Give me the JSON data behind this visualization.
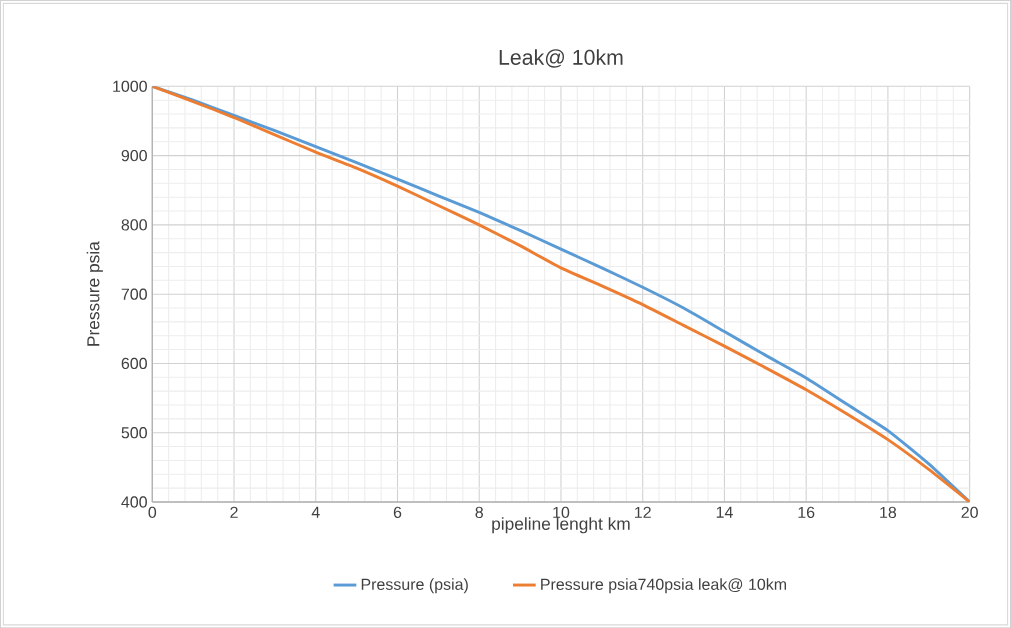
{
  "chart_data": {
    "type": "line",
    "title": "Leak@ 10km",
    "xlabel": "pipeline lenght km",
    "ylabel": "Pressure  psia",
    "x": [
      0,
      1,
      2,
      3,
      4,
      5,
      6,
      7,
      8,
      9,
      10,
      11,
      12,
      13,
      14,
      15,
      16,
      17,
      18,
      19,
      20
    ],
    "series": [
      {
        "name": "Pressure (psia)",
        "color": "#5b9bd5",
        "values": [
          1000,
          980,
          958,
          936,
          913,
          890,
          866,
          842,
          818,
          792,
          765,
          738,
          710,
          680,
          646,
          612,
          579,
          541,
          503,
          455,
          400
        ]
      },
      {
        "name": "Pressure psia740psia leak@ 10km",
        "color": "#ed7d31",
        "values": [
          1000,
          978,
          955,
          930,
          905,
          882,
          856,
          828,
          800,
          770,
          738,
          712,
          685,
          655,
          625,
          594,
          562,
          527,
          490,
          447,
          400
        ]
      }
    ],
    "xlim": [
      0,
      20
    ],
    "xticks": [
      0,
      2,
      4,
      6,
      8,
      10,
      12,
      14,
      16,
      18,
      20
    ],
    "ylim": [
      400,
      1000
    ],
    "yticks": [
      400,
      500,
      600,
      700,
      800,
      900,
      1000
    ],
    "grid": true,
    "legend": "bottom",
    "marker": "none",
    "line_style": "solid"
  }
}
